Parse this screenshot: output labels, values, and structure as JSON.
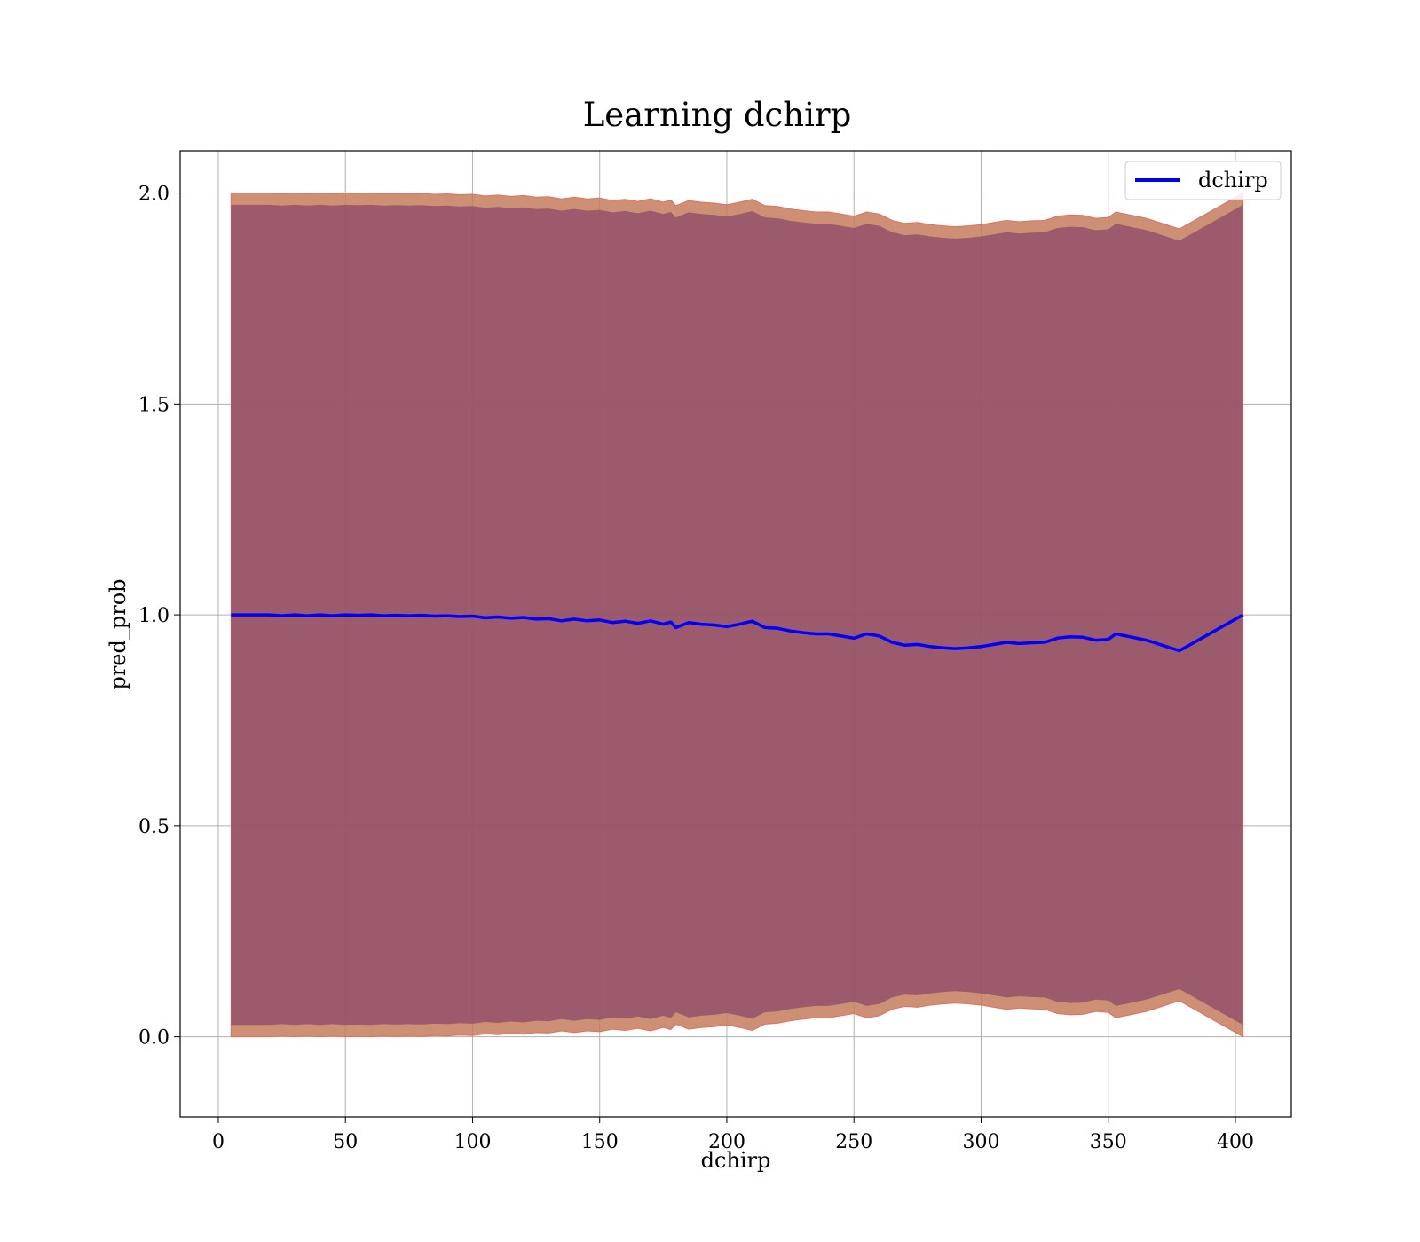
{
  "chart_data": {
    "type": "line",
    "title": "Learning dchirp",
    "xlabel": "dchirp",
    "ylabel": "pred_prob",
    "xlim": [
      -15,
      422
    ],
    "ylim": [
      -0.19,
      2.1
    ],
    "xticks": [
      0,
      50,
      100,
      150,
      200,
      250,
      300,
      350,
      400
    ],
    "xtick_labels": [
      "0",
      "50",
      "100",
      "150",
      "200",
      "250",
      "300",
      "350",
      "400"
    ],
    "yticks": [
      0.0,
      0.5,
      1.0,
      1.5,
      2.0
    ],
    "ytick_labels": [
      "0.0",
      "0.5",
      "1.0",
      "1.5",
      "2.0"
    ],
    "grid": true,
    "legend": {
      "position": "top-right",
      "entries": [
        "dchirp"
      ]
    },
    "series": [
      {
        "name": "dchirp",
        "color": "#0000ff",
        "x": [
          5,
          20,
          25,
          30,
          35,
          40,
          45,
          50,
          55,
          60,
          65,
          70,
          75,
          80,
          85,
          90,
          95,
          100,
          105,
          110,
          115,
          120,
          125,
          130,
          135,
          140,
          145,
          150,
          155,
          160,
          165,
          170,
          175,
          178,
          180,
          185,
          190,
          195,
          200,
          205,
          210,
          215,
          220,
          225,
          230,
          235,
          240,
          245,
          250,
          255,
          260,
          265,
          270,
          275,
          280,
          285,
          290,
          295,
          300,
          305,
          310,
          315,
          320,
          325,
          330,
          335,
          340,
          345,
          350,
          353,
          365,
          378,
          403
        ],
        "y": [
          1.0,
          1.0,
          0.998,
          1.0,
          0.998,
          1.0,
          0.998,
          1.0,
          0.999,
          1.0,
          0.998,
          0.999,
          0.998,
          0.999,
          0.997,
          0.998,
          0.996,
          0.997,
          0.993,
          0.995,
          0.992,
          0.994,
          0.99,
          0.991,
          0.986,
          0.99,
          0.986,
          0.988,
          0.982,
          0.985,
          0.98,
          0.986,
          0.978,
          0.983,
          0.97,
          0.982,
          0.978,
          0.976,
          0.972,
          0.978,
          0.985,
          0.97,
          0.968,
          0.962,
          0.958,
          0.955,
          0.955,
          0.95,
          0.945,
          0.955,
          0.95,
          0.935,
          0.928,
          0.93,
          0.925,
          0.922,
          0.92,
          0.922,
          0.925,
          0.93,
          0.935,
          0.932,
          0.934,
          0.935,
          0.945,
          0.948,
          0.947,
          0.94,
          0.942,
          0.955,
          0.94,
          0.915,
          1.0
        ],
        "band_outer": {
          "color": "#c47c5c",
          "lower": [
            0.0,
            0.0,
            0.002,
            0.0,
            0.002,
            0.0,
            0.002,
            0.0,
            0.001,
            0.0,
            0.002,
            0.001,
            0.002,
            0.001,
            0.003,
            0.002,
            0.004,
            0.003,
            0.007,
            0.005,
            0.008,
            0.006,
            0.01,
            0.009,
            0.014,
            0.01,
            0.014,
            0.012,
            0.018,
            0.015,
            0.02,
            0.014,
            0.022,
            0.017,
            0.03,
            0.018,
            0.022,
            0.024,
            0.028,
            0.022,
            0.015,
            0.03,
            0.032,
            0.038,
            0.042,
            0.045,
            0.045,
            0.05,
            0.055,
            0.045,
            0.05,
            0.065,
            0.072,
            0.07,
            0.075,
            0.078,
            0.08,
            0.078,
            0.075,
            0.07,
            0.065,
            0.068,
            0.066,
            0.065,
            0.055,
            0.052,
            0.053,
            0.06,
            0.058,
            0.045,
            0.06,
            0.085,
            0.0
          ],
          "upper": [
            2.0,
            2.0,
            1.998,
            2.0,
            1.998,
            2.0,
            1.998,
            2.0,
            1.999,
            2.0,
            1.998,
            1.999,
            1.998,
            1.999,
            1.997,
            1.998,
            1.996,
            1.997,
            1.993,
            1.995,
            1.992,
            1.994,
            1.99,
            1.991,
            1.986,
            1.99,
            1.986,
            1.988,
            1.982,
            1.985,
            1.98,
            1.986,
            1.978,
            1.983,
            1.97,
            1.982,
            1.978,
            1.976,
            1.972,
            1.978,
            1.985,
            1.97,
            1.968,
            1.962,
            1.958,
            1.955,
            1.955,
            1.95,
            1.945,
            1.955,
            1.95,
            1.935,
            1.928,
            1.93,
            1.925,
            1.922,
            1.92,
            1.922,
            1.925,
            1.93,
            1.935,
            1.932,
            1.934,
            1.935,
            1.945,
            1.948,
            1.947,
            1.94,
            1.942,
            1.955,
            1.94,
            1.915,
            2.0
          ]
        },
        "band_inner": {
          "color": "#8b4a6b",
          "lower": [
            0.028,
            0.028,
            0.03,
            0.028,
            0.03,
            0.028,
            0.03,
            0.028,
            0.029,
            0.028,
            0.03,
            0.029,
            0.03,
            0.029,
            0.031,
            0.03,
            0.032,
            0.031,
            0.035,
            0.033,
            0.036,
            0.034,
            0.038,
            0.037,
            0.042,
            0.038,
            0.042,
            0.04,
            0.046,
            0.043,
            0.048,
            0.042,
            0.05,
            0.045,
            0.058,
            0.046,
            0.05,
            0.052,
            0.056,
            0.05,
            0.043,
            0.058,
            0.06,
            0.066,
            0.07,
            0.073,
            0.073,
            0.078,
            0.083,
            0.073,
            0.078,
            0.093,
            0.1,
            0.098,
            0.103,
            0.106,
            0.108,
            0.106,
            0.103,
            0.098,
            0.093,
            0.096,
            0.094,
            0.093,
            0.083,
            0.08,
            0.081,
            0.088,
            0.086,
            0.073,
            0.088,
            0.113,
            0.028
          ],
          "upper": [
            1.972,
            1.972,
            1.97,
            1.972,
            1.97,
            1.972,
            1.97,
            1.972,
            1.971,
            1.972,
            1.97,
            1.971,
            1.97,
            1.971,
            1.969,
            1.97,
            1.968,
            1.969,
            1.965,
            1.967,
            1.964,
            1.966,
            1.962,
            1.963,
            1.958,
            1.962,
            1.958,
            1.96,
            1.954,
            1.957,
            1.952,
            1.958,
            1.95,
            1.955,
            1.942,
            1.954,
            1.95,
            1.948,
            1.944,
            1.95,
            1.957,
            1.942,
            1.94,
            1.934,
            1.93,
            1.927,
            1.927,
            1.922,
            1.917,
            1.927,
            1.922,
            1.907,
            1.9,
            1.902,
            1.897,
            1.894,
            1.892,
            1.894,
            1.897,
            1.902,
            1.907,
            1.904,
            1.906,
            1.907,
            1.917,
            1.92,
            1.919,
            1.912,
            1.914,
            1.927,
            1.912,
            1.887,
            1.972
          ]
        }
      }
    ]
  }
}
